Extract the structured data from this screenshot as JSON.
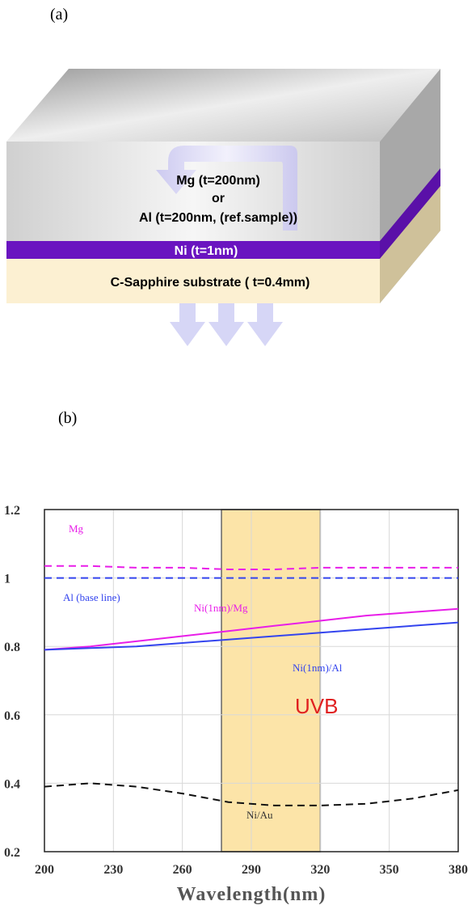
{
  "panels": [
    "(a)",
    "(b)"
  ],
  "diagram": {
    "arrow_text": [
      "Mg (t=200nm)",
      "or",
      "Al (t=200nm, (ref.sample))"
    ],
    "ni_layer": "Ni (t=1nm)",
    "substrate": "C-Sapphire substrate ( t=0.4mm)"
  },
  "chart_data": {
    "type": "line",
    "x_label": "Wavelength(nm)",
    "x": [
      200,
      220,
      240,
      260,
      280,
      300,
      320,
      340,
      360,
      380
    ],
    "xlim": [
      200,
      380
    ],
    "xticks": [
      200,
      230,
      260,
      290,
      320,
      350,
      380
    ],
    "ylim": [
      0.2,
      1.2
    ],
    "yticks": [
      0.2,
      0.4,
      0.6,
      0.8,
      1,
      1.2
    ],
    "grid": true,
    "band": {
      "label": "UVB",
      "range": [
        277,
        320
      ],
      "color": "#fce4a8"
    },
    "series": [
      {
        "name": "Mg",
        "color": "#e81ee8",
        "dashed": true,
        "values": [
          1.035,
          1.035,
          1.03,
          1.03,
          1.025,
          1.025,
          1.03,
          1.03,
          1.03,
          1.03
        ]
      },
      {
        "name": "Al (base line)",
        "color": "#3344ee",
        "dashed": true,
        "values": [
          1,
          1,
          1,
          1,
          1,
          1,
          1,
          1,
          1,
          1
        ]
      },
      {
        "name": "Ni(1nm)/Mg",
        "color": "#e81ee8",
        "dashed": false,
        "values": [
          0.79,
          0.8,
          0.815,
          0.83,
          0.845,
          0.86,
          0.875,
          0.89,
          0.9,
          0.91
        ]
      },
      {
        "name": "Ni(1nm)/Al",
        "color": "#3344ee",
        "dashed": false,
        "values": [
          0.79,
          0.795,
          0.8,
          0.81,
          0.82,
          0.83,
          0.84,
          0.85,
          0.86,
          0.87
        ]
      },
      {
        "name": "Ni/Au",
        "color": "#111111",
        "dashed": true,
        "values": [
          0.39,
          0.4,
          0.39,
          0.37,
          0.345,
          0.335,
          0.335,
          0.34,
          0.355,
          0.38
        ]
      }
    ]
  }
}
